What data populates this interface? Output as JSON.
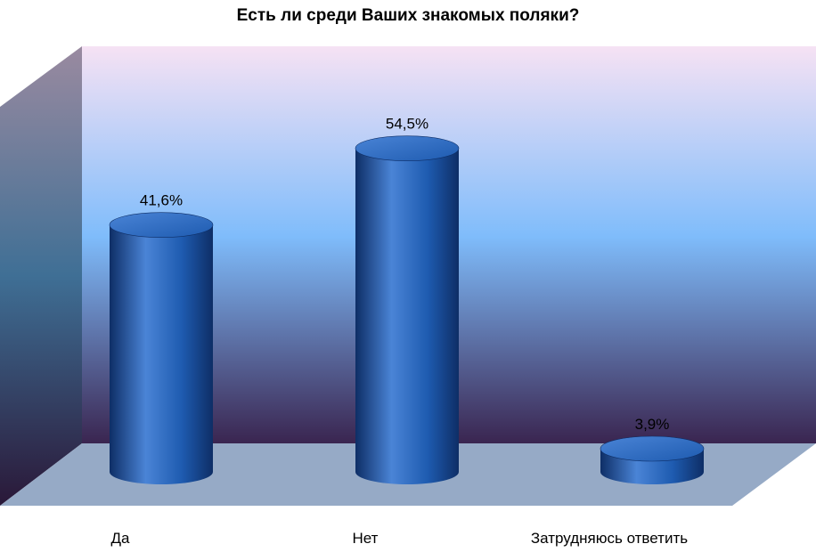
{
  "chart_data": {
    "type": "bar",
    "title": "Есть ли среди Ваших знакомых поляки?",
    "categories": [
      "Да",
      "Нет",
      "Затрудняюсь ответить"
    ],
    "series": [
      {
        "values": [
          41.6,
          54.5,
          3.9
        ],
        "labels": [
          "41,6%",
          "54,5%",
          "3,9%"
        ]
      }
    ],
    "ylim": [
      0,
      60
    ],
    "grid": false,
    "legend": "none",
    "style": "3d-cylinder",
    "colors": {
      "bar": "#1e5bb0",
      "bar_dark": "#0e2e66",
      "bar_light": "#4a84d6",
      "floor": "#96aac6",
      "wall_top": "#f6e2f4",
      "wall_mid": "#7fbcfb",
      "wall_bottom": "#3a2550"
    }
  }
}
